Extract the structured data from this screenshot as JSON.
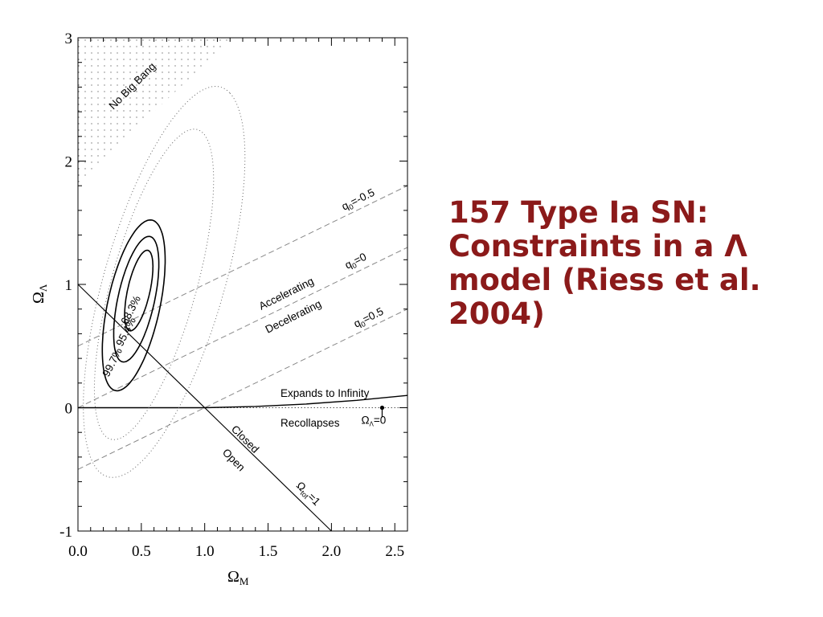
{
  "caption": {
    "lines": [
      "157 Type Ia SN:",
      "Constraints in a Λ",
      "model (Riess et al.",
      "2004)"
    ]
  },
  "chart_data": {
    "type": "line",
    "title": "",
    "xlabel": "Ω",
    "xlabel_sub": "M",
    "ylabel": "Ω",
    "ylabel_sub": "Λ",
    "xlim": [
      0,
      2.6
    ],
    "ylim": [
      -1,
      3
    ],
    "xticks": [
      "0.0",
      "0.5",
      "1.0",
      "1.5",
      "2.0",
      "2.5"
    ],
    "yticks": [
      "-1",
      "0",
      "1",
      "2",
      "3"
    ],
    "grid": false,
    "region_labels": {
      "no_big_bang": "No Big Bang",
      "accelerating": "Accelerating",
      "decelerating": "Decelerating",
      "expands": "Expands to Infinity",
      "recollapses": "Recollapses",
      "closed": "Closed",
      "open": "Open"
    },
    "lines": {
      "omega_tot": {
        "label": "Ω",
        "label_sub": "tot",
        "label_rest": "=1",
        "x": [
          0,
          2.0
        ],
        "y": [
          1,
          -1
        ]
      },
      "q0_m05": {
        "label": "q",
        "label_sub": "0",
        "label_rest": "=-0.5",
        "x": [
          0,
          2.6
        ],
        "y": [
          0.5,
          1.8
        ]
      },
      "q0_0": {
        "label": "q",
        "label_sub": "0",
        "label_rest": "=0",
        "x": [
          0,
          2.6
        ],
        "y": [
          0,
          1.3
        ]
      },
      "q0_05": {
        "label": "q",
        "label_sub": "0",
        "label_rest": "=0.5",
        "x": [
          0,
          2.6
        ],
        "y": [
          -0.5,
          0.8
        ]
      },
      "expansion_boundary": {
        "x": [
          0,
          1.0,
          1.4,
          1.8,
          2.2,
          2.6
        ],
        "y": [
          0,
          0,
          0.01,
          0.03,
          0.06,
          0.1
        ]
      }
    },
    "contours": [
      {
        "label": "68.3%",
        "style": "solid",
        "center": [
          0.48,
          0.95
        ],
        "semi_major": 0.36,
        "semi_minor": 0.085,
        "angle_deg": 63
      },
      {
        "label": "95.4%",
        "style": "solid",
        "center": [
          0.46,
          0.88
        ],
        "semi_major": 0.56,
        "semi_minor": 0.14,
        "angle_deg": 63
      },
      {
        "label": "99.7%",
        "style": "solid",
        "center": [
          0.44,
          0.83
        ],
        "semi_major": 0.76,
        "semi_minor": 0.2,
        "angle_deg": 63
      },
      {
        "label": "",
        "style": "dotted",
        "center": [
          0.6,
          1.0
        ],
        "semi_major": 1.45,
        "semi_minor": 0.32,
        "angle_deg": 58
      },
      {
        "label": "",
        "style": "dotted",
        "center": [
          0.68,
          1.02
        ],
        "semi_major": 1.85,
        "semi_minor": 0.45,
        "angle_deg": 56
      }
    ],
    "markers": [
      {
        "x": 2.4,
        "y": 0,
        "label": "Ω",
        "label_sub": "Λ",
        "label_rest": "=0"
      }
    ]
  }
}
